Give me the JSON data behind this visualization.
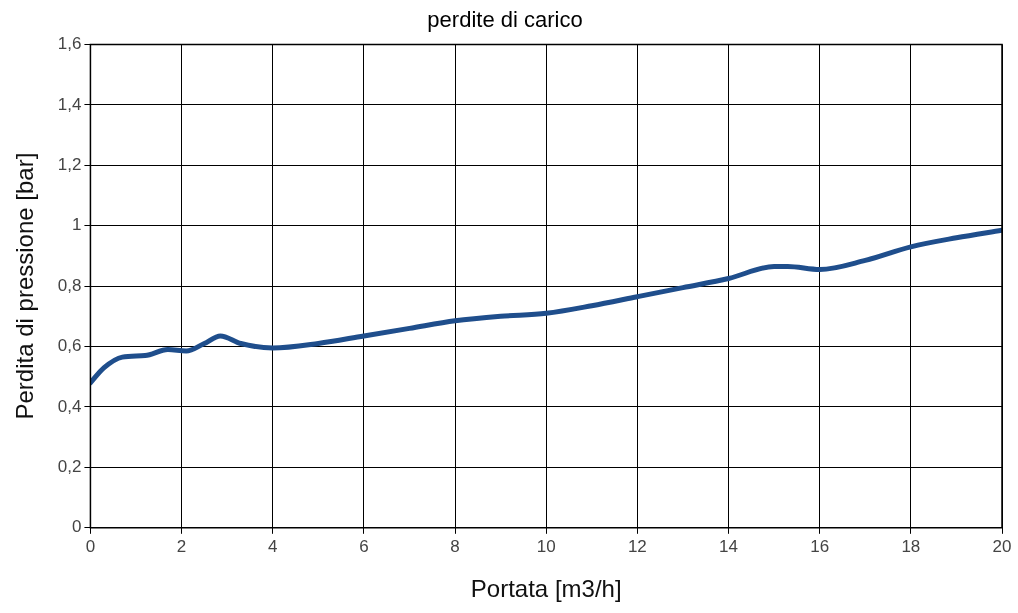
{
  "chart_data": {
    "type": "line",
    "title": "perdite di carico",
    "xlabel": "Portata [m3/h]",
    "ylabel": "Perdita di pressione [bar]",
    "xlim": [
      0,
      20
    ],
    "xticks": [
      0,
      2,
      4,
      6,
      8,
      10,
      12,
      14,
      16,
      18,
      20
    ],
    "ylim": [
      0,
      1.6
    ],
    "yticks": [
      0,
      {
        "value": 0.2,
        "label": "0,2"
      },
      {
        "value": 0.4,
        "label": "0,4"
      },
      {
        "value": 0.6,
        "label": "0,6"
      },
      {
        "value": 0.8,
        "label": "0,8"
      },
      1,
      {
        "value": 1.2,
        "label": "1,2"
      },
      {
        "value": 1.4,
        "label": "1,4"
      },
      {
        "value": 1.6,
        "label": "1,6"
      }
    ],
    "grid": true,
    "legend": false,
    "marker": "none",
    "line_style": "solid",
    "series": [
      {
        "color": "#1f4e8c",
        "x": [
          0,
          0.3,
          0.7,
          1.2,
          1.7,
          2.1,
          2.5,
          2.85,
          3.3,
          4,
          5,
          6,
          7,
          8,
          9,
          10,
          11,
          12,
          13,
          14,
          15,
          15.3,
          16,
          17,
          18,
          19,
          20
        ],
        "values": [
          0.48,
          0.53,
          0.565,
          0.57,
          0.59,
          0.585,
          0.61,
          0.635,
          0.61,
          0.595,
          0.61,
          0.635,
          0.66,
          0.685,
          0.7,
          0.71,
          0.735,
          0.765,
          0.795,
          0.825,
          0.865,
          0.865,
          0.855,
          0.885,
          0.93,
          0.96,
          0.985
        ]
      }
    ]
  }
}
